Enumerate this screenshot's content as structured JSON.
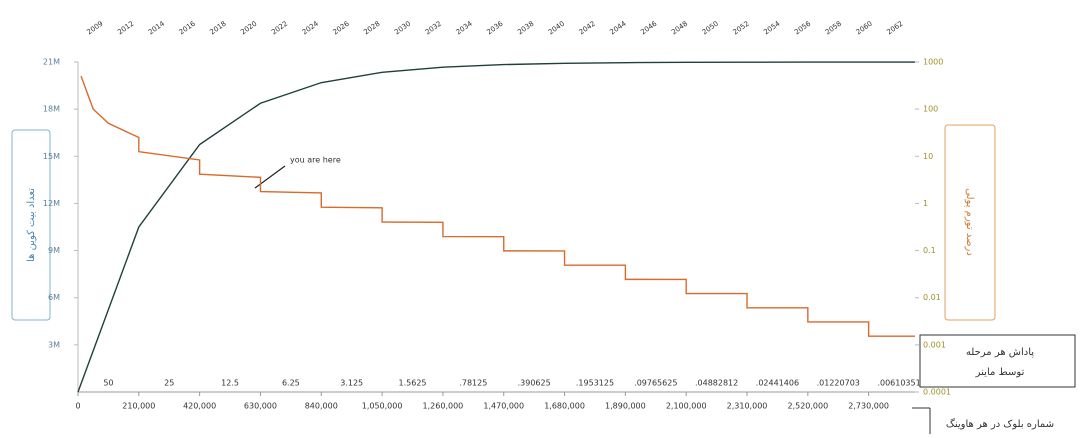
{
  "chart_data": {
    "type": "line",
    "left_axis_title": "تعداد بیت کوین ها",
    "right_axis_title": "درصد تورم پولی",
    "reward_title": [
      "پاداش هر مرحله",
      "توسط ماینر"
    ],
    "block_title": "شماره بلوک در هر هاوینگ",
    "annotation": "you are here",
    "year_labels": [
      "2009",
      "2012",
      "2014",
      "2016",
      "2018",
      "2020",
      "2022",
      "2024",
      "2026",
      "2028",
      "2030",
      "2032",
      "2034",
      "2036",
      "2038",
      "2040",
      "2042",
      "2044",
      "2046",
      "2048",
      "2050",
      "2052",
      "2054",
      "2056",
      "2058",
      "2060",
      "2062"
    ],
    "xlim": [
      0,
      2890000
    ],
    "xticks": [
      0,
      {
        "value": 210000,
        "label": "210,000"
      },
      {
        "value": 420000,
        "label": "420,000"
      },
      {
        "value": 630000,
        "label": "630,000"
      },
      {
        "value": 840000,
        "label": "840,000"
      },
      {
        "value": 1050000,
        "label": "1,050,000"
      },
      {
        "value": 1260000,
        "label": "1,260,000"
      },
      {
        "value": 1470000,
        "label": "1,470,000"
      },
      {
        "value": 1680000,
        "label": "1,680,000"
      },
      {
        "value": 1890000,
        "label": "1,890,000"
      },
      {
        "value": 2100000,
        "label": "2,100,000"
      },
      {
        "value": 2310000,
        "label": "2,310,000"
      },
      {
        "value": 2520000,
        "label": "2,520,000"
      },
      {
        "value": 2730000,
        "label": "2,730,000"
      }
    ],
    "ylim": [
      0,
      21000000
    ],
    "yticks": [
      {
        "value": 3000000,
        "label": "3M"
      },
      {
        "value": 6000000,
        "label": "6M"
      },
      {
        "value": 9000000,
        "label": "9M"
      },
      {
        "value": 12000000,
        "label": "12M"
      },
      {
        "value": 15000000,
        "label": "15M"
      },
      {
        "value": 18000000,
        "label": "18M"
      },
      {
        "value": 21000000,
        "label": "21M"
      }
    ],
    "y2log": true,
    "y2lim": [
      0.0001,
      1000
    ],
    "y2ticks": [
      0.0001,
      0.001,
      0.01,
      0.1,
      1,
      10,
      100,
      1000
    ],
    "reward": {
      "x": [
        105000,
        315000,
        525000,
        735000,
        945000,
        1155000,
        1365000,
        1575000,
        1785000,
        1995000,
        2205000,
        2415000,
        2625000,
        2835000
      ],
      "values": [
        50,
        25,
        12.5,
        6.25,
        3.125,
        1.5625,
        0.78125,
        0.390625,
        0.1953125,
        0.09765625,
        0.04882812,
        0.02441406,
        0.01220703,
        0.00610351
      ],
      "value_labels": [
        "50",
        "25",
        "12.5",
        "6.25",
        "3.125",
        "1.5625",
        ".78125",
        ".390625",
        ".1953125",
        ".09765625",
        ".04882812",
        ".02441406",
        ".01220703",
        ".00610351"
      ]
    },
    "grid": false,
    "series": [
      {
        "color": "#1f3f3c",
        "axis": "y",
        "x": [
          0,
          210000,
          420000,
          630000,
          840000,
          1050000,
          1260000,
          1470000,
          1680000,
          1890000,
          2100000,
          2310000,
          2520000,
          2730000,
          2890000
        ],
        "values": [
          0,
          10500000,
          15750000,
          18375000,
          19687500,
          20343750,
          20671875,
          20835937.5,
          20917968.75,
          20958984.375,
          20979492.1875,
          20989746.09375,
          20994873.046875,
          20997436.5234375,
          20998413.1
        ]
      },
      {
        "color": "#d86a2c",
        "axis": "y2",
        "x": [
          10500,
          52500,
          105000,
          210000,
          210000,
          420000,
          420000,
          630000,
          630000,
          840000,
          840000,
          1050000,
          1050000,
          1260000,
          1260000,
          1470000,
          1470000,
          1680000,
          1680000,
          1890000,
          1890000,
          2100000,
          2100000,
          2310000,
          2310000,
          2520000,
          2520000,
          2730000,
          2730000,
          2890000
        ],
        "values": [
          500.57,
          100.11,
          50.06,
          25.03,
          12.514,
          8.343,
          4.171,
          3.576,
          1.788,
          1.669,
          0.8343,
          0.8074,
          0.4037,
          0.3973,
          0.1986,
          0.1971,
          0.09854,
          0.09815,
          0.04908,
          0.04898,
          0.02449,
          0.02447,
          0.01223,
          0.01223,
          0.006115,
          0.006115,
          0.003057,
          0.003057,
          0.001528,
          0.001528
        ]
      }
    ]
  }
}
